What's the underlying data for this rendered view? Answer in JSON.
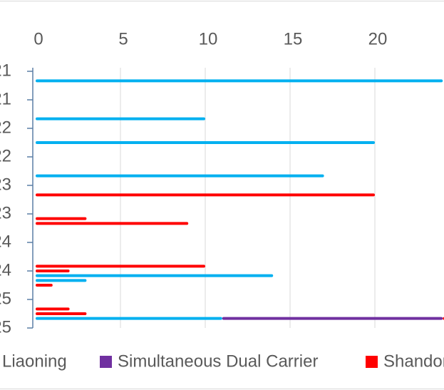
{
  "chart_data": {
    "type": "stacked-bar-horizontal",
    "categories": [
      "21",
      null,
      null,
      null,
      null,
      null,
      "21",
      null,
      null,
      null,
      null,
      null,
      "22",
      null,
      null,
      null,
      null,
      null,
      "22",
      null,
      null,
      null,
      null,
      null,
      "23",
      null,
      null,
      null,
      null,
      null,
      "23",
      null,
      null,
      null,
      null,
      null,
      "24",
      null,
      null,
      null,
      null,
      null,
      "24",
      null,
      null,
      null,
      null,
      null,
      "25",
      null,
      null,
      null,
      null,
      null,
      "25"
    ],
    "series": [
      {
        "name": "Liaoning",
        "color": "#00b0f0",
        "values": [
          null,
          null,
          24,
          null,
          null,
          null,
          null,
          null,
          null,
          null,
          10,
          null,
          null,
          null,
          null,
          20,
          null,
          null,
          null,
          null,
          null,
          null,
          17,
          null,
          null,
          null,
          null,
          null,
          null,
          null,
          null,
          null,
          null,
          null,
          null,
          null,
          null,
          null,
          null,
          null,
          null,
          null,
          null,
          14,
          3,
          null,
          null,
          null,
          null,
          null,
          null,
          null,
          11,
          null,
          null
        ]
      },
      {
        "name": "Simultaneous Dual Carrier",
        "color": "#7030a0",
        "values": [
          null,
          null,
          null,
          null,
          null,
          null,
          null,
          null,
          null,
          null,
          null,
          null,
          null,
          null,
          null,
          null,
          null,
          null,
          null,
          null,
          null,
          null,
          null,
          null,
          null,
          null,
          null,
          null,
          null,
          null,
          null,
          null,
          null,
          null,
          null,
          null,
          null,
          null,
          null,
          null,
          null,
          null,
          null,
          null,
          null,
          null,
          null,
          null,
          null,
          null,
          null,
          null,
          13,
          null,
          null
        ]
      },
      {
        "name": "Shandong",
        "color": "#ff0000",
        "values": [
          null,
          null,
          null,
          null,
          null,
          null,
          null,
          null,
          null,
          null,
          null,
          null,
          null,
          null,
          null,
          null,
          null,
          null,
          null,
          null,
          null,
          null,
          null,
          null,
          null,
          null,
          20,
          null,
          null,
          null,
          null,
          3,
          9,
          null,
          null,
          null,
          null,
          null,
          null,
          null,
          null,
          10,
          2,
          null,
          null,
          1,
          null,
          null,
          null,
          null,
          2,
          3,
          1,
          null,
          null
        ]
      }
    ],
    "xlim": [
      0,
      25
    ],
    "xticks": [
      0,
      5,
      10,
      15,
      20
    ],
    "grid": true
  }
}
